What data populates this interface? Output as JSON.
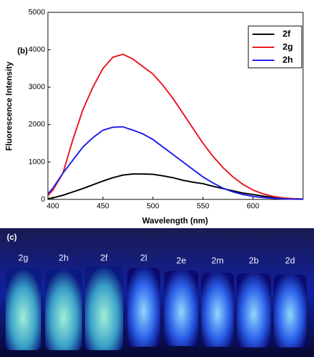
{
  "chart_data": {
    "type": "line",
    "annotation": "(b)",
    "xlabel": "Wavelength (nm)",
    "ylabel": "Fluorescence Intensity",
    "x": [
      395,
      400,
      410,
      420,
      430,
      440,
      450,
      460,
      470,
      480,
      490,
      500,
      510,
      520,
      530,
      540,
      550,
      560,
      570,
      580,
      590,
      600,
      610,
      620,
      630,
      640,
      650
    ],
    "series": [
      {
        "name": "2f",
        "color": "#000000",
        "values": [
          20,
          40,
          110,
          200,
          290,
          390,
          490,
          580,
          650,
          680,
          680,
          670,
          630,
          580,
          510,
          460,
          420,
          350,
          290,
          230,
          170,
          130,
          90,
          50,
          30,
          15,
          10
        ]
      },
      {
        "name": "2g",
        "color": "#e8141a",
        "values": [
          100,
          250,
          700,
          1600,
          2400,
          3000,
          3500,
          3800,
          3880,
          3750,
          3550,
          3350,
          3050,
          2700,
          2300,
          1900,
          1500,
          1150,
          850,
          600,
          400,
          250,
          150,
          80,
          40,
          20,
          10
        ]
      },
      {
        "name": "2h",
        "color": "#1c1ce8",
        "values": [
          150,
          300,
          700,
          1050,
          1400,
          1650,
          1850,
          1930,
          1940,
          1850,
          1750,
          1600,
          1400,
          1200,
          1000,
          800,
          600,
          440,
          300,
          200,
          130,
          80,
          50,
          30,
          15,
          8,
          5
        ]
      }
    ],
    "xlim": [
      395,
      650
    ],
    "xticks": [
      400,
      450,
      500,
      550,
      600
    ],
    "ylim": [
      0,
      5000
    ],
    "yticks": [
      0,
      1000,
      2000,
      3000,
      4000,
      5000
    ],
    "legend": "upper right"
  },
  "photo": {
    "panel_label": "(c)",
    "vial_labels": [
      "2g",
      "2h",
      "2f",
      "2l",
      "2e",
      "2m",
      "2b",
      "2d"
    ]
  }
}
